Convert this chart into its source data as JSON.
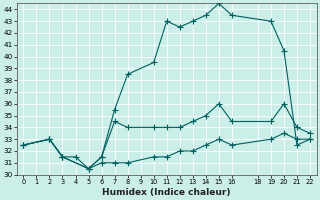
{
  "xlabel": "Humidex (Indice chaleur)",
  "bg_color": "#cceee8",
  "grid_color": "#b0ddd8",
  "line_color": "#006060",
  "ylim": [
    30,
    44.5
  ],
  "xlim": [
    -0.5,
    22.5
  ],
  "yticks": [
    30,
    31,
    32,
    33,
    34,
    35,
    36,
    37,
    38,
    39,
    40,
    41,
    42,
    43,
    44
  ],
  "xticks": [
    0,
    1,
    2,
    3,
    4,
    5,
    6,
    7,
    8,
    9,
    10,
    11,
    12,
    13,
    14,
    15,
    16,
    18,
    19,
    20,
    21,
    22
  ],
  "series": [
    {
      "x": [
        0,
        2,
        3,
        4,
        5,
        6,
        7,
        8,
        10,
        11,
        12,
        13,
        14,
        15,
        16,
        19,
        20,
        21,
        22
      ],
      "y": [
        32.5,
        33,
        31.5,
        31.5,
        30.5,
        31.5,
        35.5,
        38.5,
        39.5,
        43.0,
        42.5,
        43.0,
        43.5,
        44.5,
        43.5,
        43.0,
        40.5,
        32.5,
        33.0
      ]
    },
    {
      "x": [
        0,
        2,
        3,
        5,
        6,
        7,
        8,
        10,
        11,
        12,
        13,
        14,
        15,
        16,
        19,
        20,
        21,
        22
      ],
      "y": [
        32.5,
        33.0,
        31.5,
        30.5,
        31.5,
        34.5,
        34.0,
        34.0,
        34.0,
        34.0,
        34.5,
        35.0,
        36.0,
        34.5,
        34.5,
        36.0,
        34.0,
        33.5
      ]
    },
    {
      "x": [
        0,
        2,
        3,
        5,
        6,
        7,
        8,
        10,
        11,
        12,
        13,
        14,
        15,
        16,
        19,
        20,
        21,
        22
      ],
      "y": [
        32.5,
        33.0,
        31.5,
        30.5,
        31.0,
        31.0,
        31.0,
        31.5,
        31.5,
        32.0,
        32.0,
        32.5,
        33.0,
        32.5,
        33.0,
        33.5,
        33.0,
        33.0
      ]
    }
  ]
}
